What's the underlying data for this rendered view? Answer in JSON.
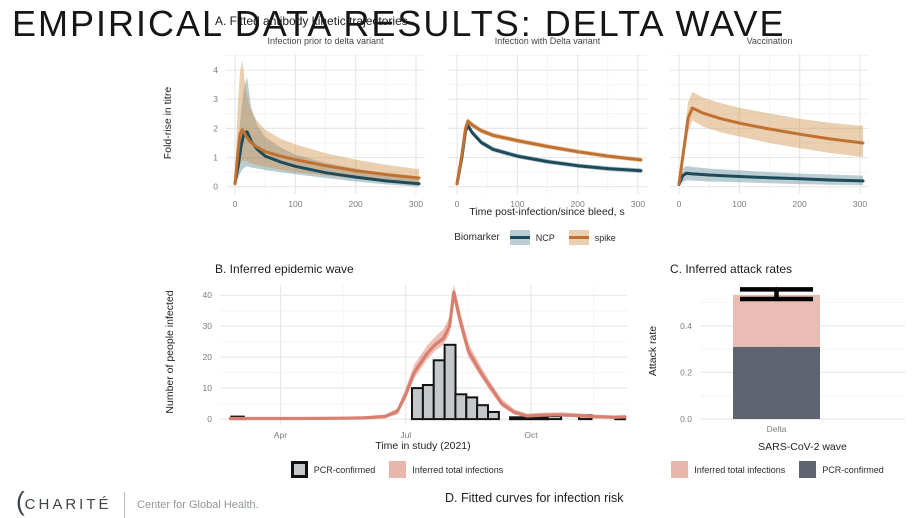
{
  "slide": {
    "title": "EMPIRICAL DATA RESULTS: DELTA WAVE"
  },
  "footer": {
    "brand": "CHARITÉ",
    "unit": "Center for Global Health.",
    "next_section_title": "D. Fitted curves for infection risk"
  },
  "colors": {
    "grid_major": "#e8e8e8",
    "grid_minor": "#f4f4f4",
    "tick_text": "#7b7b7b",
    "axis_title": "#232323"
  },
  "chart_data": [
    {
      "type": "line",
      "panel": "A",
      "title": "A. Fitted antibody kinetic trajectories",
      "xlabel": "Time post-infection/since bleed, s",
      "ylabel": "Fold-rise in titre",
      "legend_title": "Biomarker",
      "biomarkers": [
        "NCP",
        "spike"
      ],
      "xlim": [
        -15,
        315
      ],
      "ylim": [
        -0.25,
        4.55
      ],
      "xticks": [
        0,
        100,
        200,
        300
      ],
      "yticks": [
        0,
        1,
        2,
        3,
        4
      ],
      "x_minor": [
        50,
        150,
        250
      ],
      "y_minor": [
        0.5,
        1.5,
        2.5,
        3.5,
        4.5
      ],
      "styles": {
        "NCP": {
          "line": "#1d4b59",
          "ribbon": "#5b8795"
        },
        "spike": {
          "line": "#c07030",
          "ribbon": "#cf8d45"
        }
      },
      "facets": [
        {
          "label": "Infection prior to delta variant",
          "series": [
            {
              "name": "NCP",
              "x": [
                0,
                5,
                10,
                15,
                20,
                27,
                37,
                50,
                75,
                100,
                150,
                200,
                250,
                305
              ],
              "y": [
                0.12,
                0.7,
                1.4,
                1.85,
                1.88,
                1.55,
                1.28,
                1.05,
                0.85,
                0.7,
                0.48,
                0.33,
                0.2,
                0.1
              ],
              "hi": [
                0.25,
                1.4,
                2.6,
                3.4,
                3.75,
                2.7,
                2.1,
                1.7,
                1.35,
                1.1,
                0.82,
                0.62,
                0.45,
                0.32
              ],
              "lo": [
                0.05,
                0.3,
                0.52,
                0.65,
                0.7,
                0.66,
                0.62,
                0.57,
                0.5,
                0.43,
                0.3,
                0.18,
                0.08,
                0.0
              ]
            },
            {
              "name": "spike",
              "x": [
                0,
                4,
                8,
                12,
                18,
                25,
                35,
                50,
                75,
                100,
                150,
                200,
                250,
                305
              ],
              "y": [
                0.1,
                1.0,
                1.8,
                1.95,
                1.75,
                1.55,
                1.38,
                1.2,
                1.05,
                0.93,
                0.72,
                0.55,
                0.42,
                0.3
              ],
              "hi": [
                0.18,
                2.6,
                3.9,
                4.35,
                3.3,
                2.7,
                2.3,
                1.95,
                1.65,
                1.45,
                1.15,
                0.93,
                0.75,
                0.6
              ],
              "lo": [
                0.04,
                0.45,
                0.75,
                0.9,
                0.88,
                0.82,
                0.75,
                0.68,
                0.58,
                0.5,
                0.38,
                0.28,
                0.18,
                0.1
              ]
            }
          ]
        },
        {
          "label": "Infection with Delta variant",
          "series": [
            {
              "name": "NCP",
              "x": [
                0,
                8,
                14,
                18,
                25,
                40,
                60,
                100,
                150,
                200,
                250,
                305
              ],
              "y": [
                0.1,
                1.0,
                1.9,
                2.1,
                1.86,
                1.52,
                1.28,
                1.05,
                0.86,
                0.72,
                0.62,
                0.55
              ],
              "hi": [
                0.16,
                1.12,
                2.02,
                2.22,
                1.96,
                1.61,
                1.37,
                1.13,
                0.94,
                0.8,
                0.7,
                0.63
              ],
              "lo": [
                0.05,
                0.88,
                1.78,
                1.98,
                1.76,
                1.43,
                1.19,
                0.97,
                0.78,
                0.64,
                0.54,
                0.47
              ]
            },
            {
              "name": "spike",
              "x": [
                0,
                8,
                14,
                18,
                25,
                40,
                60,
                100,
                150,
                200,
                250,
                305
              ],
              "y": [
                0.1,
                1.1,
                2.0,
                2.25,
                2.12,
                1.92,
                1.76,
                1.58,
                1.38,
                1.2,
                1.05,
                0.92
              ],
              "hi": [
                0.16,
                1.22,
                2.12,
                2.36,
                2.22,
                2.01,
                1.85,
                1.66,
                1.46,
                1.28,
                1.13,
                1.0
              ],
              "lo": [
                0.05,
                0.98,
                1.88,
                2.14,
                2.02,
                1.83,
                1.67,
                1.5,
                1.3,
                1.12,
                0.97,
                0.84
              ]
            }
          ]
        },
        {
          "label": "Vaccination",
          "series": [
            {
              "name": "NCP",
              "x": [
                0,
                6,
                12,
                22,
                50,
                100,
                150,
                200,
                250,
                305
              ],
              "y": [
                0.08,
                0.38,
                0.46,
                0.44,
                0.4,
                0.35,
                0.31,
                0.27,
                0.23,
                0.2
              ],
              "hi": [
                0.15,
                0.62,
                0.71,
                0.68,
                0.62,
                0.56,
                0.5,
                0.45,
                0.42,
                0.38
              ],
              "lo": [
                0.02,
                0.15,
                0.22,
                0.21,
                0.18,
                0.15,
                0.12,
                0.09,
                0.07,
                0.05
              ]
            },
            {
              "name": "spike",
              "x": [
                0,
                8,
                15,
                22,
                40,
                70,
                100,
                150,
                200,
                250,
                305
              ],
              "y": [
                0.1,
                1.3,
                2.35,
                2.7,
                2.52,
                2.33,
                2.18,
                1.98,
                1.8,
                1.64,
                1.5
              ],
              "hi": [
                0.16,
                1.6,
                2.9,
                3.25,
                3.05,
                2.86,
                2.71,
                2.51,
                2.33,
                2.19,
                2.08
              ],
              "lo": [
                0.05,
                1.0,
                1.85,
                2.28,
                2.06,
                1.86,
                1.72,
                1.5,
                1.32,
                1.16,
                1.02
              ]
            }
          ]
        }
      ]
    },
    {
      "type": "bar+line",
      "panel": "B",
      "title": "B. Inferred epidemic wave",
      "xlabel": "Time in study (2021)",
      "ylabel": "Number of people infected",
      "xlim": [
        2.55,
        12.3
      ],
      "ylim": [
        -1.9,
        43.3
      ],
      "xticks": [
        {
          "v": 4,
          "label": "Apr"
        },
        {
          "v": 7,
          "label": "Jul"
        },
        {
          "v": 10,
          "label": "Oct"
        }
      ],
      "yticks": [
        0,
        10,
        20,
        30,
        40
      ],
      "x_minor": [
        5.5,
        8.5,
        11.5
      ],
      "y_minor": [
        5,
        15,
        25,
        35
      ],
      "bar_fill": "#c5c8cb",
      "bar_stroke": "#131313",
      "line_color": "#d97f6f",
      "ribbon_opacity": 0.5,
      "bars": [
        [
          2.82,
          3.12,
          0.8
        ],
        [
          7.15,
          7.41,
          10
        ],
        [
          7.41,
          7.67,
          11
        ],
        [
          7.67,
          7.93,
          19
        ],
        [
          7.93,
          8.19,
          24
        ],
        [
          8.19,
          8.45,
          8
        ],
        [
          8.45,
          8.71,
          7
        ],
        [
          8.71,
          8.97,
          4.5
        ],
        [
          8.97,
          9.23,
          2.3
        ],
        [
          9.5,
          10.4,
          0.6
        ],
        [
          10.4,
          10.72,
          1.0
        ],
        [
          11.15,
          11.45,
          1.2
        ],
        [
          12.02,
          12.25,
          0.6
        ]
      ],
      "line": {
        "x": [
          2.8,
          3.5,
          4.5,
          5.5,
          6.0,
          6.5,
          6.8,
          7.0,
          7.2,
          7.5,
          7.7,
          7.9,
          8.05,
          8.15,
          8.3,
          8.5,
          8.8,
          9.0,
          9.3,
          9.6,
          9.9,
          10.3,
          10.7,
          11.0,
          11.5,
          12.0,
          12.25
        ],
        "y": [
          0.2,
          0.2,
          0.2,
          0.3,
          0.4,
          0.8,
          2.5,
          8,
          15,
          21,
          24,
          26,
          30,
          41,
          32,
          22,
          15,
          11,
          5,
          2.2,
          1.0,
          1.3,
          1.4,
          1.2,
          0.8,
          0.6,
          0.7
        ],
        "hi": [
          0.5,
          0.5,
          0.5,
          0.7,
          0.9,
          1.5,
          3.5,
          10,
          17.5,
          23.5,
          26.5,
          29,
          33,
          43.5,
          35,
          24.5,
          17,
          12.5,
          6.5,
          3.2,
          1.8,
          2.1,
          2.2,
          2.0,
          1.5,
          1.2,
          1.3
        ],
        "lo": [
          0,
          0,
          0,
          0.1,
          0.1,
          0.3,
          1.5,
          6.5,
          13,
          19,
          22,
          24,
          27.5,
          38.5,
          29.5,
          20,
          13.5,
          9.5,
          4,
          1.5,
          0.5,
          0.7,
          0.8,
          0.6,
          0.3,
          0.2,
          0.3
        ]
      },
      "legend_swatches": [
        {
          "label": "PCR-confirmed",
          "fill": "#c5c8cb",
          "border": "#111111"
        },
        {
          "label": "Inferred total infections",
          "fill": "#e9b6ac"
        }
      ]
    },
    {
      "type": "stacked-bar",
      "panel": "C",
      "title": "C. Inferred attack rates",
      "xlabel": "SARS-CoV-2 wave",
      "ylabel": "Attack rate",
      "categories": [
        "Delta"
      ],
      "series": [
        {
          "name": "PCR-confirmed",
          "values": [
            0.31
          ],
          "color": "#5f6470"
        },
        {
          "name": "Inferred total infections",
          "values": [
            0.223
          ],
          "color": "#e9b6ac"
        }
      ],
      "total": 0.533,
      "error_bar": {
        "low": 0.515,
        "high": 0.556
      },
      "yticks": [
        0.0,
        0.2,
        0.4
      ],
      "y_minor": [
        0.1,
        0.3,
        0.5
      ],
      "ylim": [
        0,
        0.575
      ],
      "legend_swatches": [
        {
          "label": "Inferred total infections",
          "fill": "#e9b6ac"
        },
        {
          "label": "PCR-confirmed",
          "fill": "#5f6470"
        }
      ]
    }
  ]
}
